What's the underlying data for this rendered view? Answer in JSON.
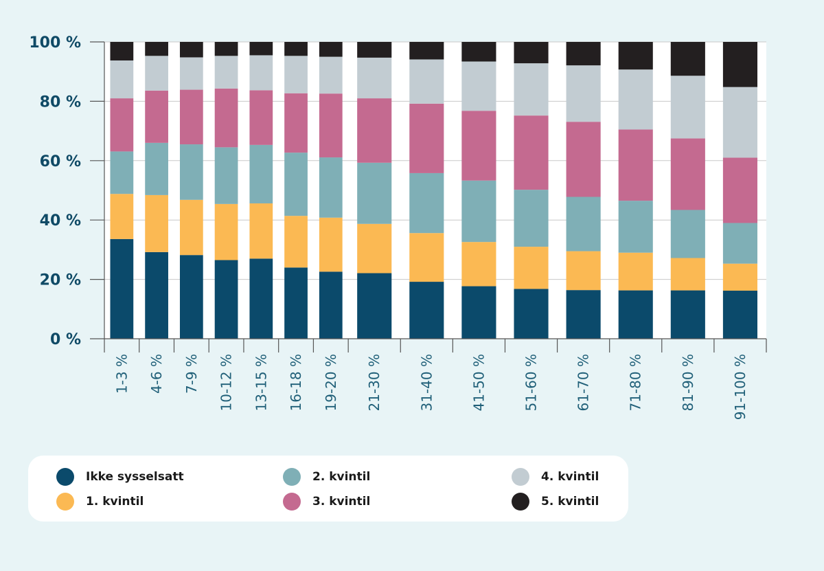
{
  "chart_data": {
    "type": "bar",
    "stacked": true,
    "title": "",
    "xlabel": "",
    "ylabel": "",
    "ylim": [
      0,
      100
    ],
    "yticks": [
      "0 %",
      "20 %",
      "40 %",
      "60 %",
      "80 %",
      "100 %"
    ],
    "grid": true,
    "legend_position": "bottom",
    "categories": [
      "1-3 %",
      "4-6 %",
      "7-9 %",
      "10-12 %",
      "13-15 %",
      "16-18 %",
      "19-20 %",
      "21-30 %",
      "31-40 %",
      "41-50 %",
      "51-60 %",
      "61-70 %",
      "71-80 %",
      "81-90 %",
      "91-100 %"
    ],
    "category_width": [
      1,
      1,
      1,
      1,
      1,
      1,
      1,
      1.5,
      1.5,
      1.5,
      1.5,
      1.5,
      1.5,
      1.5,
      1.5
    ],
    "series": [
      {
        "name": "Ikke sysselsatt",
        "color": "#0b4a6b",
        "values": [
          33.6,
          29.2,
          28.2,
          26.5,
          27.0,
          24.0,
          22.6,
          22.1,
          19.2,
          17.7,
          16.8,
          16.4,
          16.3,
          16.3,
          16.2
        ]
      },
      {
        "name": "1. kvintil",
        "color": "#fbb953",
        "values": [
          15.2,
          19.2,
          18.6,
          18.9,
          18.6,
          17.4,
          18.2,
          16.6,
          16.4,
          14.9,
          14.2,
          13.1,
          12.7,
          10.9,
          9.1
        ]
      },
      {
        "name": "2. kvintil",
        "color": "#7fafb6",
        "values": [
          14.3,
          17.6,
          18.7,
          19.1,
          19.7,
          21.3,
          20.3,
          20.6,
          20.2,
          20.7,
          19.2,
          18.3,
          17.5,
          16.2,
          13.7
        ]
      },
      {
        "name": "3. kvintil",
        "color": "#c46a90",
        "values": [
          17.9,
          17.6,
          18.4,
          19.8,
          18.4,
          20.0,
          21.5,
          21.7,
          23.4,
          23.5,
          25.0,
          25.3,
          24.0,
          24.1,
          22.0
        ]
      },
      {
        "name": "4. kvintil",
        "color": "#c2ccd2",
        "values": [
          12.75,
          11.7,
          10.9,
          11.0,
          11.8,
          12.6,
          12.4,
          13.7,
          14.9,
          16.6,
          17.6,
          19.0,
          20.2,
          21.1,
          23.8
        ]
      },
      {
        "name": "5. kvintil",
        "color": "#231f20",
        "values": [
          6.25,
          4.7,
          5.2,
          4.7,
          4.5,
          4.7,
          5.0,
          5.3,
          5.9,
          6.6,
          7.2,
          7.9,
          9.3,
          11.4,
          15.2
        ]
      }
    ]
  },
  "legend": {
    "items": [
      {
        "label": "Ikke sysselsatt",
        "color": "#0b4a6b"
      },
      {
        "label": "1. kvintil",
        "color": "#fbb953"
      },
      {
        "label": "2. kvintil",
        "color": "#7fafb6"
      },
      {
        "label": "3. kvintil",
        "color": "#c46a90"
      },
      {
        "label": "4. kvintil",
        "color": "#c2ccd2"
      },
      {
        "label": "5. kvintil",
        "color": "#231f20"
      }
    ]
  }
}
